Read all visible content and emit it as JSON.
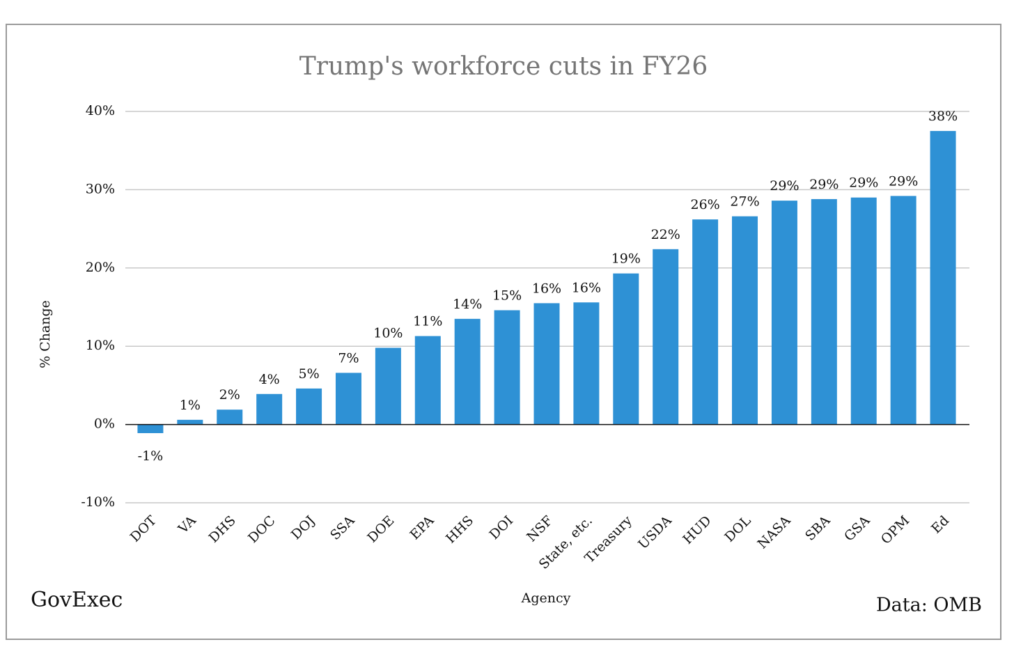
{
  "chart_data": {
    "type": "bar",
    "title": "Trump's workforce cuts in FY26",
    "x_label": "Agency",
    "y_label": "% Change",
    "credit": "GovExec",
    "source": "Data: OMB",
    "categories": [
      "DOT",
      "VA",
      "DHS",
      "DOC",
      "DOJ",
      "SSA",
      "DOE",
      "EPA",
      "HHS",
      "DOI",
      "NSF",
      "State, etc.",
      "Treasury",
      "USDA",
      "HUD",
      "DOL",
      "NASA",
      "SBA",
      "GSA",
      "OPM",
      "Ed"
    ],
    "values": [
      -1.1,
      0.6,
      1.9,
      3.9,
      4.6,
      6.6,
      9.8,
      11.3,
      13.5,
      14.6,
      15.5,
      15.6,
      19.3,
      22.4,
      26.2,
      26.6,
      28.6,
      28.8,
      29.0,
      29.2,
      37.5
    ],
    "value_labels": [
      "-1%",
      "1%",
      "2%",
      "4%",
      "5%",
      "7%",
      "10%",
      "11%",
      "14%",
      "15%",
      "16%",
      "16%",
      "19%",
      "22%",
      "26%",
      "27%",
      "29%",
      "29%",
      "29%",
      "29%",
      "38%"
    ],
    "color": "#2e91d5",
    "ylim": [
      -10,
      40
    ],
    "yticks": [
      {
        "value": -10,
        "label": "-10%"
      },
      {
        "value": 0,
        "label": "0%"
      },
      {
        "value": 10,
        "label": "10%"
      },
      {
        "value": 20,
        "label": "20%"
      },
      {
        "value": 30,
        "label": "30%"
      },
      {
        "value": 40,
        "label": "40%"
      }
    ],
    "grid": true
  }
}
